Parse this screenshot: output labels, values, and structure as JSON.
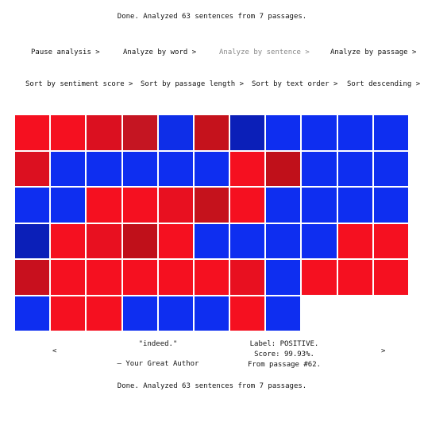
{
  "status_top": "Done. Analyzed 63 sentences from 7 passages.",
  "status_bottom": "Done. Analyzed 63 sentences from 7 passages.",
  "controls": {
    "pause": "Pause analysis >",
    "by_word": "Analyze by word >",
    "by_sentence": "Analyze by sentence >",
    "by_passage": "Analyze by passage >",
    "sort_score": "Sort by sentiment score >",
    "sort_length": "Sort by passage length >",
    "sort_order": "Sort by text order >",
    "sort_desc": "Sort descending >"
  },
  "colors": {
    "positive": "#f5101f",
    "negative": "#0d2ff0"
  },
  "cells": [
    "#f51020",
    "#f51020",
    "#db1020",
    "#c51522",
    "#0e2ee8",
    "#c5121c",
    "#0b1fb8",
    "#0e2ef0",
    "#0e2ef0",
    "#0e2ef0",
    "#0e2ef0",
    "#dc1020",
    "#0e2ef0",
    "#0e2ef0",
    "#0e2ef0",
    "#0e2ef0",
    "#0e2ef0",
    "#f51020",
    "#c0101a",
    "#0e2ef0",
    "#0e2ef0",
    "#0e2ef0",
    "#0e2ef0",
    "#0e2ef0",
    "#f51020",
    "#f51020",
    "#e81020",
    "#c5121c",
    "#f51020",
    "#0e2ef0",
    "#0e2ef0",
    "#0e2ef0",
    "#0e2ef0",
    "#0b1fb8",
    "#f51020",
    "#e81020",
    "#c0101a",
    "#f51020",
    "#0e2ef0",
    "#0e2ef0",
    "#0e2ef0",
    "#0e2ef0",
    "#f51020",
    "#f51020",
    "#c8101e",
    "#f51020",
    "#f51020",
    "#f51020",
    "#f51020",
    "#f51020",
    "#e81020",
    "#0e2ef0",
    "#f51020",
    "#f51020",
    "#f51020",
    "#0e2ef0",
    "#f51020",
    "#f51020",
    "#0e2ef0",
    "#0e2ef0",
    "#0e2ef0",
    "#f51020",
    "#0e2ef0"
  ],
  "detail": {
    "quote": "\"indeed.\"",
    "author": "— Your Great Author",
    "label": "Label: POSITIVE.",
    "score": "Score: 99.93%.",
    "passage": "From passage #62."
  },
  "nav": {
    "prev": "<",
    "next": ">"
  }
}
